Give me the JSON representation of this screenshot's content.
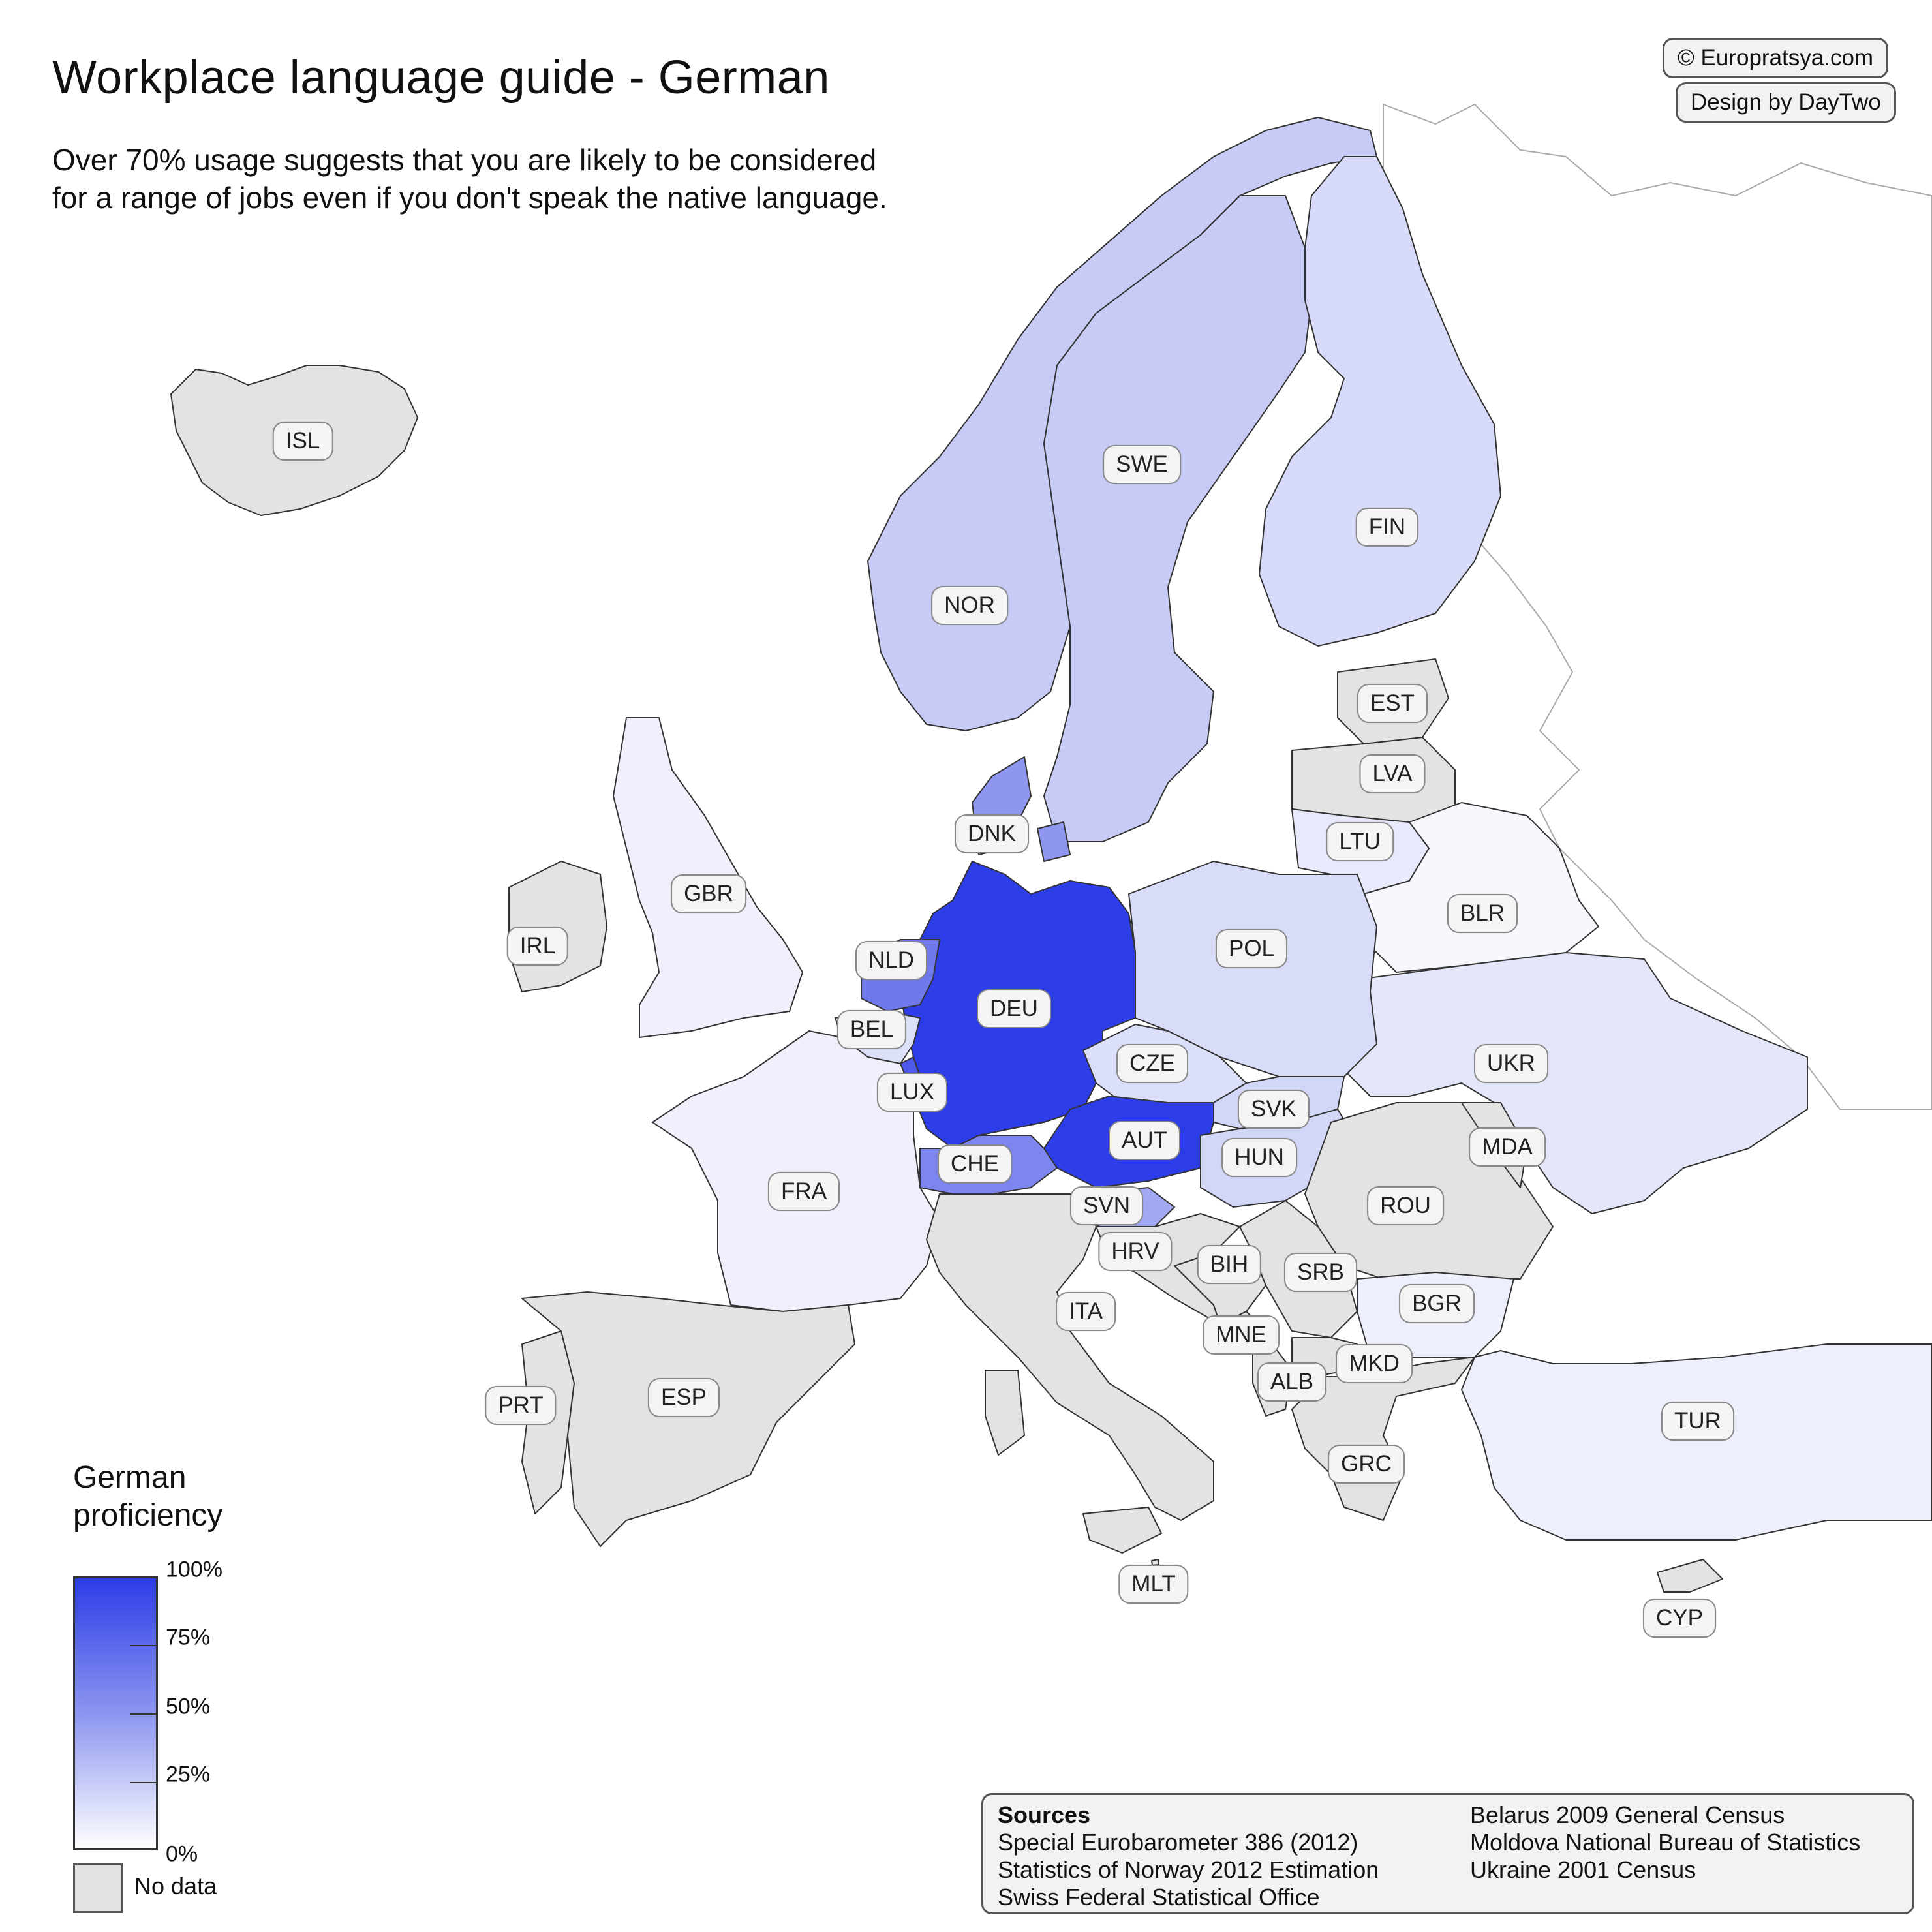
{
  "header": {
    "title": "Workplace language guide - German",
    "subtitle": "Over 70% usage suggests that you are likely to be considered for a range of jobs even if you don't speak the native language."
  },
  "credits": {
    "copyright": "© Europratsya.com",
    "design": "Design by DayTwo"
  },
  "legend": {
    "title": "German proficiency",
    "ticks": [
      "100%",
      "75%",
      "50%",
      "25%",
      "0%"
    ],
    "no_data_label": "No data",
    "color_scale": [
      "#ffffff",
      "#2d3de8"
    ],
    "no_data_color": "#e3e3e3"
  },
  "countries": [
    {
      "code": "ISL",
      "level": null
    },
    {
      "code": "NOR",
      "level": "medium-low"
    },
    {
      "code": "SWE",
      "level": "medium-low"
    },
    {
      "code": "FIN",
      "level": "low"
    },
    {
      "code": "EST",
      "level": null
    },
    {
      "code": "LVA",
      "level": null
    },
    {
      "code": "LTU",
      "level": "low"
    },
    {
      "code": "DNK",
      "level": "medium"
    },
    {
      "code": "GBR",
      "level": "very-low"
    },
    {
      "code": "IRL",
      "level": null
    },
    {
      "code": "NLD",
      "level": "medium-high"
    },
    {
      "code": "BEL",
      "level": "low"
    },
    {
      "code": "LUX",
      "level": "high"
    },
    {
      "code": "DEU",
      "level": "native"
    },
    {
      "code": "POL",
      "level": "low"
    },
    {
      "code": "BLR",
      "level": "very-low"
    },
    {
      "code": "UKR",
      "level": "very-low"
    },
    {
      "code": "CZE",
      "level": "low"
    },
    {
      "code": "SVK",
      "level": "low"
    },
    {
      "code": "AUT",
      "level": "native"
    },
    {
      "code": "HUN",
      "level": "low"
    },
    {
      "code": "CHE",
      "level": "medium-high"
    },
    {
      "code": "FRA",
      "level": "very-low"
    },
    {
      "code": "MDA",
      "level": null
    },
    {
      "code": "ROU",
      "level": null
    },
    {
      "code": "SVN",
      "level": "medium"
    },
    {
      "code": "HRV",
      "level": null
    },
    {
      "code": "BIH",
      "level": null
    },
    {
      "code": "SRB",
      "level": null
    },
    {
      "code": "BGR",
      "level": "very-low"
    },
    {
      "code": "ITA",
      "level": null
    },
    {
      "code": "MNE",
      "level": null
    },
    {
      "code": "MKD",
      "level": null
    },
    {
      "code": "ALB",
      "level": null
    },
    {
      "code": "PRT",
      "level": null
    },
    {
      "code": "ESP",
      "level": null
    },
    {
      "code": "TUR",
      "level": "very-low"
    },
    {
      "code": "GRC",
      "level": null
    },
    {
      "code": "MLT",
      "level": null
    },
    {
      "code": "CYP",
      "level": null
    }
  ],
  "sources": {
    "heading": "Sources",
    "left": [
      "Special Eurobarometer 386 (2012)",
      "Statistics of Norway 2012 Estimation",
      "Swiss Federal Statistical Office"
    ],
    "right": [
      "Belarus 2009 General Census",
      "Moldova National Bureau of Statistics",
      "Ukraine 2001 Census"
    ]
  }
}
